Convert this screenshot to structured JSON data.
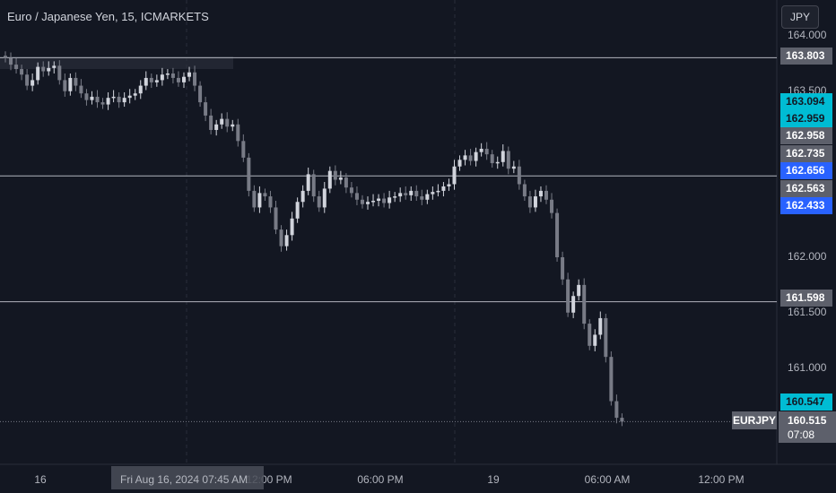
{
  "header": {
    "title": "Euro / Japanese Yen, 15, ICMARKETS",
    "currency_button": "JPY"
  },
  "colors": {
    "background": "#131722",
    "candle": "#d1d4dc",
    "candle_down": "#787b86",
    "cyan": "#00bcd4",
    "blue": "#2962ff",
    "gray": "#5d606b"
  },
  "x_axis": {
    "ticks": [
      "16",
      "12:00 PM",
      "06:00 PM",
      "19",
      "06:00 AM",
      "12:00 PM"
    ],
    "crosshair_label": "Fri Aug 16, 2024   07:45 AM"
  },
  "y_axis": {
    "ticks": [
      "164.000",
      "163.500",
      "162.000",
      "161.500",
      "161.000"
    ]
  },
  "price_tags": [
    {
      "value": "163.803",
      "kind": "gray"
    },
    {
      "value": "163.094",
      "kind": "cyan"
    },
    {
      "value": "162.959",
      "kind": "cyan"
    },
    {
      "value": "162.958",
      "kind": "gray"
    },
    {
      "value": "162.735",
      "kind": "gray"
    },
    {
      "value": "162.656",
      "kind": "blue"
    },
    {
      "value": "162.563",
      "kind": "gray"
    },
    {
      "value": "162.433",
      "kind": "blue"
    },
    {
      "value": "161.598",
      "kind": "gray"
    },
    {
      "value": "160.547",
      "kind": "cyan"
    }
  ],
  "last_price": {
    "symbol": "EURJPY",
    "price": "160.515",
    "countdown": "07:08"
  },
  "chart_data": {
    "type": "candlestick",
    "title": "Euro / Japanese Yen, 15, ICMARKETS",
    "ylim": [
      160.1,
      164.02
    ],
    "horizontal_levels": [
      163.803,
      162.735,
      161.598,
      160.515
    ],
    "closes": [
      163.8,
      163.74,
      163.7,
      163.65,
      163.55,
      163.6,
      163.72,
      163.68,
      163.71,
      163.73,
      163.6,
      163.5,
      163.62,
      163.55,
      163.48,
      163.42,
      163.45,
      163.4,
      163.38,
      163.44,
      163.45,
      163.4,
      163.44,
      163.46,
      163.48,
      163.55,
      163.62,
      163.58,
      163.6,
      163.65,
      163.66,
      163.62,
      163.58,
      163.63,
      163.67,
      163.55,
      163.4,
      163.28,
      163.15,
      163.2,
      163.25,
      163.18,
      163.2,
      163.05,
      162.9,
      162.6,
      162.45,
      162.58,
      162.55,
      162.45,
      162.25,
      162.1,
      162.2,
      162.35,
      162.5,
      162.6,
      162.75,
      162.55,
      162.45,
      162.62,
      162.78,
      162.7,
      162.72,
      162.63,
      162.58,
      162.52,
      162.48,
      162.5,
      162.51,
      162.53,
      162.49,
      162.54,
      162.55,
      162.58,
      162.56,
      162.6,
      162.55,
      162.52,
      162.57,
      162.59,
      162.6,
      162.64,
      162.66,
      162.82,
      162.88,
      162.92,
      162.87,
      162.95,
      162.98,
      162.93,
      162.85,
      162.86,
      162.96,
      162.8,
      162.82,
      162.66,
      162.55,
      162.45,
      162.55,
      162.6,
      162.52,
      162.4,
      162.0,
      161.8,
      161.5,
      161.65,
      161.75,
      161.4,
      161.2,
      161.3,
      161.45,
      161.1,
      160.7,
      160.55,
      160.515
    ],
    "candle_spacing_note": "15-minute candles"
  }
}
